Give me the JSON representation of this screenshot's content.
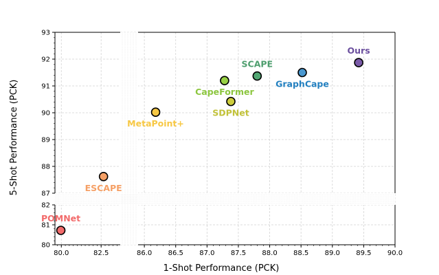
{
  "chart_data": {
    "type": "scatter",
    "title": "",
    "xlabel": "1-Shot Performance (PCK)",
    "ylabel": "5-Shot Performance (PCK)",
    "grid": true,
    "x_axis": {
      "broken": true,
      "segments": [
        {
          "range": [
            79.6,
            83.7
          ],
          "ticks": [
            80.0,
            82.5
          ],
          "tick_labels": [
            "80.0",
            "82.5"
          ]
        },
        {
          "range": [
            85.9,
            90.0
          ],
          "ticks": [
            86.0,
            86.5,
            87.0,
            87.5,
            88.0,
            88.5,
            89.0,
            89.5,
            90.0
          ],
          "tick_labels": [
            "86.0",
            "86.5",
            "87.0",
            "87.5",
            "88.0",
            "88.5",
            "89.0",
            "89.5",
            "90.0"
          ]
        }
      ]
    },
    "y_axis": {
      "broken": true,
      "segments": [
        {
          "range": [
            80,
            82
          ],
          "ticks": [
            80,
            81,
            82
          ],
          "tick_labels": [
            "80",
            "81",
            "82"
          ]
        },
        {
          "range": [
            87,
            93
          ],
          "ticks": [
            87,
            88,
            89,
            90,
            91,
            92,
            93
          ],
          "tick_labels": [
            "87",
            "88",
            "89",
            "90",
            "91",
            "92",
            "93"
          ]
        }
      ]
    },
    "points": [
      {
        "name": "POMNet",
        "x": 79.97,
        "y": 80.72,
        "color": "#f26b6b",
        "label_pos": "above"
      },
      {
        "name": "ESCAPE",
        "x": 82.65,
        "y": 87.62,
        "color": "#f5a066",
        "label_pos": "below"
      },
      {
        "name": "MetaPoint+",
        "x": 86.18,
        "y": 90.02,
        "color": "#f7c844",
        "label_pos": "below"
      },
      {
        "name": "CapeFormer",
        "x": 87.28,
        "y": 91.2,
        "color": "#98d145",
        "label_pos": "below"
      },
      {
        "name": "SDPNet",
        "x": 87.38,
        "y": 90.42,
        "color": "#cdcd3c",
        "label_pos": "below"
      },
      {
        "name": "SCAPE",
        "x": 87.8,
        "y": 91.37,
        "color": "#52a773",
        "label_pos": "above"
      },
      {
        "name": "GraphCape",
        "x": 88.52,
        "y": 91.5,
        "color": "#4a98d0",
        "label_pos": "below"
      },
      {
        "name": "Ours",
        "x": 89.42,
        "y": 91.87,
        "color": "#7a5aa8",
        "label_pos": "above"
      }
    ],
    "label_colors": {
      "POMNet": "#f26b6b",
      "ESCAPE": "#f5a066",
      "MetaPoint+": "#f7c844",
      "CapeFormer": "#8cc63f",
      "SDPNet": "#c2c23a",
      "SCAPE": "#4e9e6e",
      "GraphCape": "#2380c0",
      "Ours": "#6b4f9e"
    }
  }
}
